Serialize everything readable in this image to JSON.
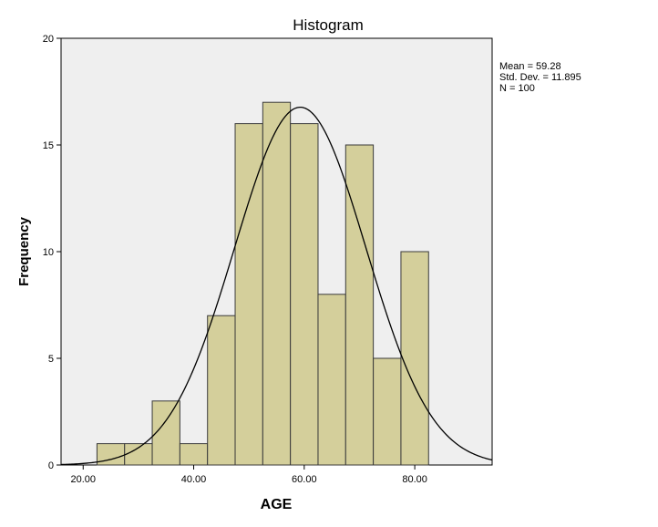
{
  "chart_data": {
    "type": "histogram",
    "title": "Histogram",
    "xlabel": "AGE",
    "ylabel": "Frequency",
    "xlim": [
      16,
      94
    ],
    "ylim": [
      0,
      20
    ],
    "x_ticks": [
      "20.00",
      "40.00",
      "60.00",
      "80.00"
    ],
    "x_tick_values": [
      20,
      40,
      60,
      80
    ],
    "y_ticks": [
      "0",
      "5",
      "10",
      "15",
      "20"
    ],
    "y_tick_values": [
      0,
      5,
      10,
      15,
      20
    ],
    "bin_width": 5,
    "bins": [
      {
        "start": 22.5,
        "end": 27.5,
        "count": 1
      },
      {
        "start": 27.5,
        "end": 32.5,
        "count": 1
      },
      {
        "start": 32.5,
        "end": 37.5,
        "count": 3
      },
      {
        "start": 37.5,
        "end": 42.5,
        "count": 1
      },
      {
        "start": 42.5,
        "end": 47.5,
        "count": 7
      },
      {
        "start": 47.5,
        "end": 52.5,
        "count": 16
      },
      {
        "start": 52.5,
        "end": 57.5,
        "count": 17
      },
      {
        "start": 57.5,
        "end": 62.5,
        "count": 16
      },
      {
        "start": 62.5,
        "end": 67.5,
        "count": 8
      },
      {
        "start": 67.5,
        "end": 72.5,
        "count": 15
      },
      {
        "start": 72.5,
        "end": 77.5,
        "count": 5
      },
      {
        "start": 77.5,
        "end": 82.5,
        "count": 10
      }
    ],
    "normal_curve": {
      "mean": 59.28,
      "std_dev": 11.895,
      "n": 100
    },
    "stats_text": [
      "Mean = 59.28",
      "Std. Dev. = 11.895",
      "N = 100"
    ],
    "grid": false,
    "colors": {
      "bar_fill": "#d4cf9b",
      "bar_stroke": "#3a3a3a",
      "plot_bg": "#efefef",
      "curve": "#000000"
    }
  }
}
